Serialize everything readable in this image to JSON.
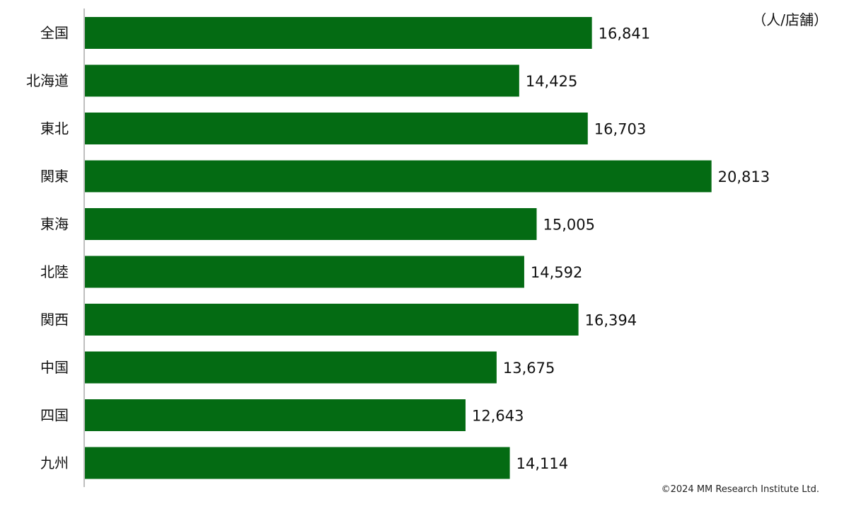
{
  "chart_data": {
    "type": "bar",
    "orientation": "horizontal",
    "unit": "（人/店舗）",
    "categories": [
      "全国",
      "北海道",
      "東北",
      "関東",
      "東海",
      "北陸",
      "関西",
      "中国",
      "四国",
      "九州"
    ],
    "values": [
      16841,
      14425,
      16703,
      20813,
      15005,
      14592,
      16394,
      13675,
      12643,
      14114
    ],
    "value_labels": [
      "16,841",
      "14,425",
      "16,703",
      "20,813",
      "15,005",
      "14,592",
      "16,394",
      "13,675",
      "12,643",
      "14,114"
    ],
    "xlim": [
      0,
      23500
    ],
    "bar_color": "#046b13",
    "axis_color": "#bfbfbf",
    "grid": false,
    "legend": "none"
  },
  "footer": {
    "copyright": "©2024  MM Research Institute Ltd."
  }
}
